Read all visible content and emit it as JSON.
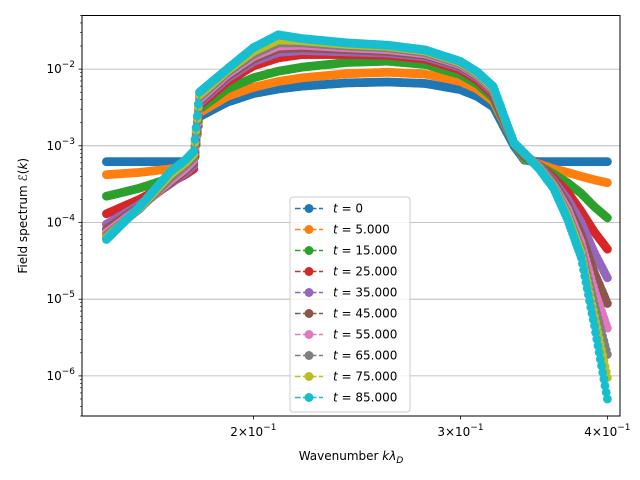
{
  "chart_data": {
    "type": "line",
    "xscale": "log",
    "yscale": "log",
    "xlabel": "Wavenumber kλ_D",
    "ylabel": "Field spectrum ℰ(k)",
    "xlim": [
      0.143,
      0.41
    ],
    "ylim": [
      3e-07,
      0.05
    ],
    "grid": "y-major",
    "legend_position": "lower-center",
    "x_ticks": [
      {
        "value": 0.2,
        "mantissa": "2",
        "exp": "−1"
      },
      {
        "value": 0.3,
        "mantissa": "3",
        "exp": "−1"
      },
      {
        "value": 0.4,
        "mantissa": "4",
        "exp": "−1"
      }
    ],
    "y_ticks": [
      {
        "value": 1e-06,
        "exp": "−6"
      },
      {
        "value": 1e-05,
        "exp": "−5"
      },
      {
        "value": 0.0001,
        "exp": "−4"
      },
      {
        "value": 0.001,
        "exp": "−3"
      },
      {
        "value": 0.01,
        "exp": "−2"
      }
    ],
    "x": [
      0.15,
      0.16,
      0.17,
      0.175,
      0.178,
      0.18,
      0.19,
      0.2,
      0.21,
      0.22,
      0.24,
      0.26,
      0.28,
      0.3,
      0.31,
      0.32,
      0.333,
      0.34,
      0.35,
      0.36,
      0.37,
      0.38,
      0.39,
      0.4
    ],
    "series": [
      {
        "name": "t = 0",
        "label_plain": "t = 0",
        "color": "#1f77b4",
        "values": [
          0.00062,
          0.00062,
          0.00062,
          0.00062,
          0.00062,
          0.0024,
          0.0037,
          0.0048,
          0.0055,
          0.006,
          0.0066,
          0.0068,
          0.0065,
          0.0054,
          0.0044,
          0.0032,
          0.001,
          0.00065,
          0.00062,
          0.00062,
          0.00062,
          0.00062,
          0.00062,
          0.00062
        ]
      },
      {
        "name": "t = 5.000",
        "label_plain": "t = 5.000",
        "color": "#ff7f0e",
        "values": [
          0.00042,
          0.00045,
          0.0005,
          0.00053,
          0.00055,
          0.0027,
          0.0044,
          0.0058,
          0.0069,
          0.0077,
          0.0087,
          0.0091,
          0.0086,
          0.0069,
          0.0055,
          0.0038,
          0.0011,
          0.00068,
          0.00058,
          0.0005,
          0.00045,
          0.0004,
          0.00036,
          0.00033
        ]
      },
      {
        "name": "t = 15.000",
        "label_plain": "t = 15.000",
        "color": "#2ca02c",
        "values": [
          0.00022,
          0.00028,
          0.00038,
          0.00044,
          0.0005,
          0.003,
          0.0055,
          0.0077,
          0.0094,
          0.0106,
          0.0122,
          0.0127,
          0.0115,
          0.0085,
          0.0064,
          0.0042,
          0.0011,
          0.0007,
          0.00055,
          0.00043,
          0.00033,
          0.00024,
          0.00016,
          0.000115
        ]
      },
      {
        "name": "t = 25.000",
        "label_plain": "t = 25.000",
        "color": "#d62728",
        "values": [
          0.00013,
          0.0002,
          0.00033,
          0.00042,
          0.0005,
          0.0034,
          0.0068,
          0.011,
          0.014,
          0.0155,
          0.0155,
          0.0152,
          0.0135,
          0.0098,
          0.0072,
          0.0046,
          0.0011,
          0.00075,
          0.00055,
          0.00038,
          0.00025,
          0.00014,
          7.5e-05,
          4.5e-05
        ]
      },
      {
        "name": "t = 35.000",
        "label_plain": "t = 35.000",
        "color": "#9467bd",
        "values": [
          9.5e-05,
          0.00017,
          0.00032,
          0.00044,
          0.00055,
          0.0036,
          0.0075,
          0.0125,
          0.0165,
          0.0175,
          0.0168,
          0.0162,
          0.0145,
          0.0105,
          0.0077,
          0.0049,
          0.0011,
          0.00077,
          0.00055,
          0.00035,
          0.0002,
          0.0001,
          4e-05,
          1.9e-05
        ]
      },
      {
        "name": "t = 45.000",
        "label_plain": "t = 45.000",
        "color": "#8c564b",
        "values": [
          8.2e-05,
          0.00016,
          0.00033,
          0.00047,
          0.0006,
          0.0038,
          0.008,
          0.0135,
          0.0185,
          0.019,
          0.018,
          0.017,
          0.0152,
          0.011,
          0.008,
          0.0051,
          0.0011,
          0.00078,
          0.00054,
          0.00033,
          0.00017,
          7e-05,
          2.2e-05,
          8.8e-06
        ]
      },
      {
        "name": "t = 55.000",
        "label_plain": "t = 55.000",
        "color": "#e377c2",
        "values": [
          7.4e-05,
          0.000155,
          0.00035,
          0.0005,
          0.00065,
          0.004,
          0.0085,
          0.0145,
          0.02,
          0.0205,
          0.019,
          0.018,
          0.0158,
          0.0114,
          0.0083,
          0.0053,
          0.0011,
          0.00079,
          0.00053,
          0.00031,
          0.00015,
          5.5e-05,
          1.3e-05,
          4.2e-06
        ]
      },
      {
        "name": "t = 65.000",
        "label_plain": "t = 65.000",
        "color": "#7f7f7f",
        "values": [
          6.8e-05,
          0.00015,
          0.00038,
          0.00055,
          0.0007,
          0.0043,
          0.009,
          0.0155,
          0.022,
          0.022,
          0.02,
          0.019,
          0.0165,
          0.0118,
          0.0086,
          0.0055,
          0.0011,
          0.0008,
          0.00052,
          0.0003,
          0.00013,
          4.5e-05,
          8.5e-06,
          1.9e-06
        ]
      },
      {
        "name": "t = 75.000",
        "label_plain": "t = 75.000",
        "color": "#bcbd22",
        "values": [
          6.3e-05,
          0.000155,
          0.00042,
          0.0006,
          0.00078,
          0.0046,
          0.0095,
          0.017,
          0.024,
          0.0235,
          0.021,
          0.0198,
          0.0172,
          0.0122,
          0.0089,
          0.0057,
          0.0011,
          0.0008,
          0.00051,
          0.00029,
          0.00012,
          4e-05,
          6e-06,
          9.5e-07
        ]
      },
      {
        "name": "t = 85.000",
        "label_plain": "t = 85.000",
        "color": "#17becf",
        "values": [
          6e-05,
          0.00016,
          0.00046,
          0.00065,
          0.00085,
          0.005,
          0.01,
          0.019,
          0.028,
          0.025,
          0.022,
          0.0205,
          0.0178,
          0.0126,
          0.0092,
          0.0059,
          0.0011,
          0.0008,
          0.0005,
          0.00028,
          0.00011,
          3.5e-05,
          4.5e-06,
          5e-07
        ]
      }
    ]
  }
}
